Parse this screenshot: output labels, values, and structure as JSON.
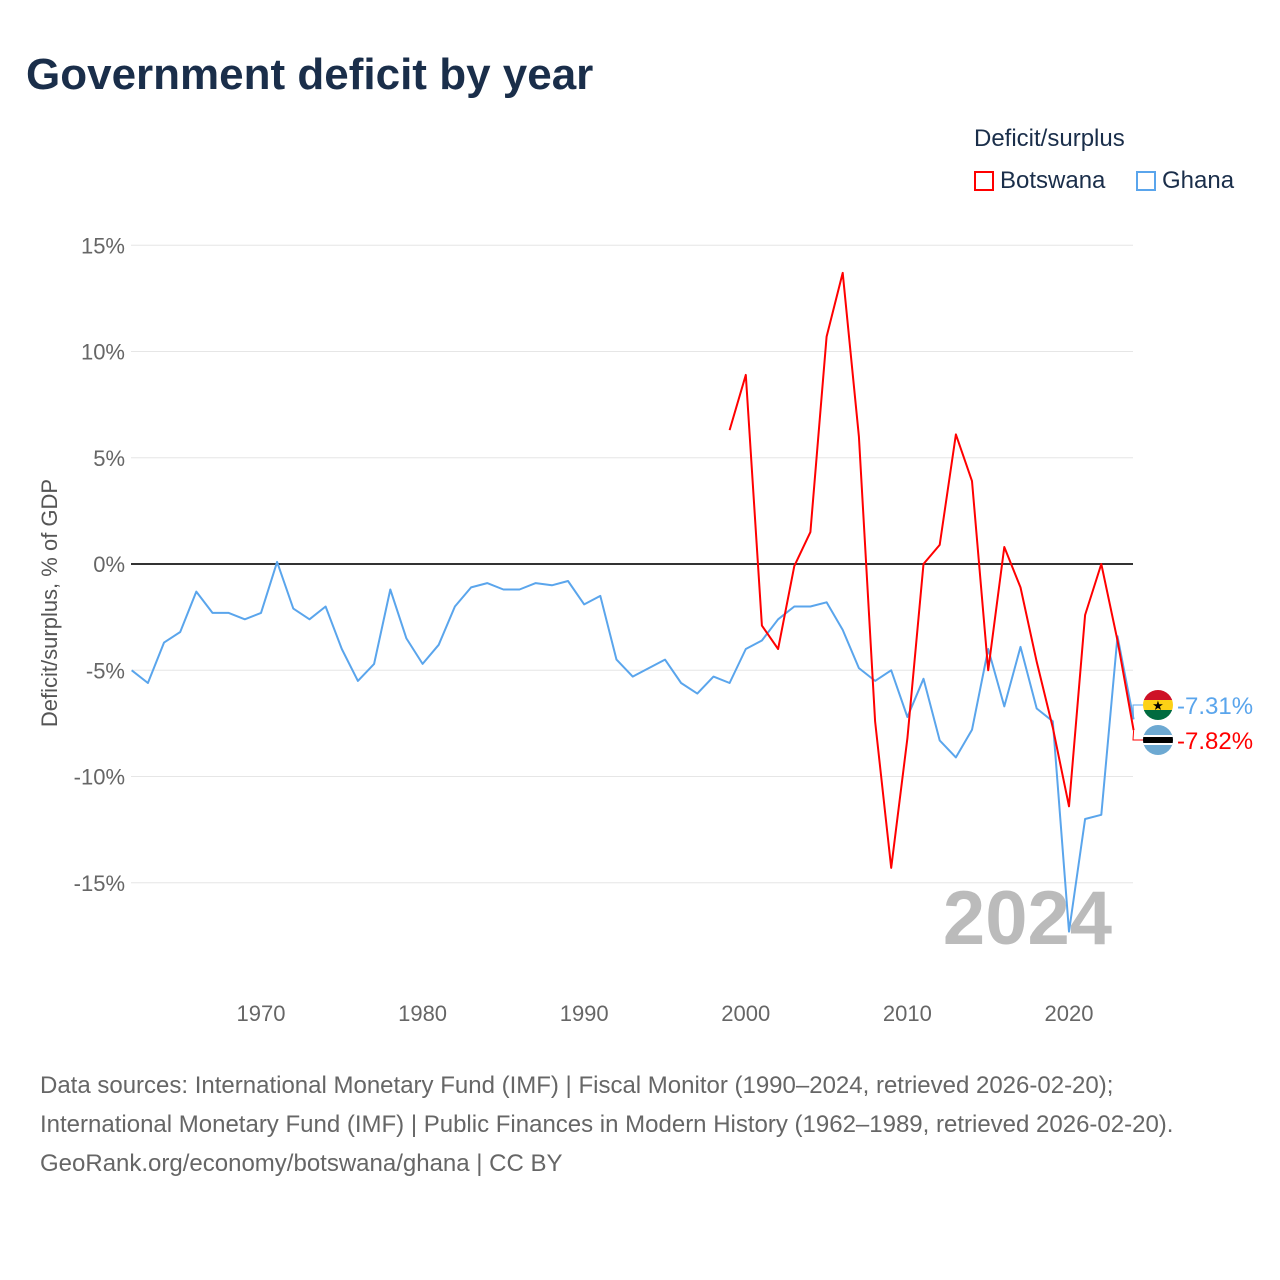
{
  "title": "Government deficit by year",
  "legend": {
    "title": "Deficit/surplus",
    "items": [
      {
        "name": "Botswana",
        "color": "#ff0000"
      },
      {
        "name": "Ghana",
        "color": "#5aa5ec"
      }
    ]
  },
  "sources": {
    "line1": "Data sources: International Monetary Fund (IMF) | Fiscal Monitor (1990–2024, retrieved 2026-02-20); International Monetary Fund (IMF) | Public Finances in Modern History (1962–1989, retrieved 2026-02-20).",
    "line2": "GeoRank.org/economy/botswana/ghana | CC BY"
  },
  "chart_data": {
    "type": "line",
    "title": "Government deficit by year",
    "ylabel": "Deficit/surplus, % of GDP",
    "xlabel": "",
    "xlim": [
      1962,
      2024
    ],
    "ylim": [
      -17.5,
      16
    ],
    "yticks": [
      15,
      10,
      5,
      0,
      -5,
      -10,
      -15
    ],
    "ytick_labels": [
      "15%",
      "10%",
      "5%",
      "0%",
      "-5%",
      "-10%",
      "-15%"
    ],
    "xticks": [
      1970,
      1980,
      1990,
      2000,
      2010,
      2020
    ],
    "xtick_labels": [
      "1970",
      "1980",
      "1990",
      "2000",
      "2010",
      "2020"
    ],
    "year_watermark": "2024",
    "series": [
      {
        "name": "Botswana",
        "color": "#ff0000",
        "end_label": "-7.82%",
        "flag": "botswana-flag",
        "x": [
          1999,
          2000,
          2001,
          2002,
          2003,
          2004,
          2005,
          2006,
          2007,
          2008,
          2009,
          2010,
          2011,
          2012,
          2013,
          2014,
          2015,
          2016,
          2017,
          2018,
          2019,
          2020,
          2021,
          2022,
          2023,
          2024
        ],
        "values": [
          6.3,
          8.9,
          -2.9,
          -4.0,
          -0.1,
          1.5,
          10.7,
          13.7,
          6.0,
          -7.4,
          -14.3,
          -8.2,
          0.0,
          0.9,
          6.1,
          3.9,
          -5.0,
          0.8,
          -1.1,
          -4.6,
          -7.7,
          -11.4,
          -2.4,
          0.0,
          -3.6,
          -7.82
        ]
      },
      {
        "name": "Ghana",
        "color": "#5aa5ec",
        "end_label": "-7.31%",
        "flag": "ghana-flag",
        "x": [
          1962,
          1963,
          1964,
          1965,
          1966,
          1967,
          1968,
          1969,
          1970,
          1971,
          1972,
          1973,
          1974,
          1975,
          1976,
          1977,
          1978,
          1979,
          1980,
          1981,
          1982,
          1983,
          1984,
          1985,
          1986,
          1987,
          1988,
          1989,
          1990,
          1991,
          1992,
          1993,
          1994,
          1995,
          1996,
          1997,
          1998,
          1999,
          2000,
          2001,
          2002,
          2003,
          2004,
          2005,
          2006,
          2007,
          2008,
          2009,
          2010,
          2011,
          2012,
          2013,
          2014,
          2015,
          2016,
          2017,
          2018,
          2019,
          2020,
          2021,
          2022,
          2023,
          2024
        ],
        "values": [
          -5.0,
          -5.6,
          -3.7,
          -3.2,
          -1.3,
          -2.3,
          -2.3,
          -2.6,
          -2.3,
          0.1,
          -2.1,
          -2.6,
          -2.0,
          -4.0,
          -5.5,
          -4.7,
          -1.2,
          -3.5,
          -4.7,
          -3.8,
          -2.0,
          -1.1,
          -0.9,
          -1.2,
          -1.2,
          -0.9,
          -1.0,
          -0.8,
          -1.9,
          -1.5,
          -4.5,
          -5.3,
          -4.9,
          -4.5,
          -5.6,
          -6.1,
          -5.3,
          -5.6,
          -4.0,
          -3.6,
          -2.6,
          -2.0,
          -2.0,
          -1.8,
          -3.1,
          -4.9,
          -5.5,
          -5.0,
          -7.2,
          -5.4,
          -8.3,
          -9.1,
          -7.8,
          -4.0,
          -6.7,
          -3.9,
          -6.8,
          -7.4,
          -17.3,
          -12.0,
          -11.8,
          -3.4,
          -7.31
        ]
      }
    ],
    "legend_position": "top-right",
    "grid": true
  }
}
